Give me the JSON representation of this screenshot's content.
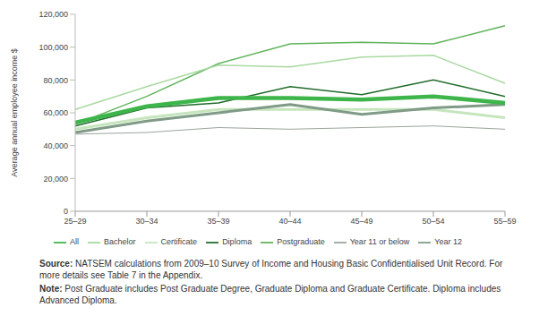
{
  "chart_data": {
    "type": "line",
    "y_label": "Average annual employee income $",
    "categories": [
      "25–29",
      "30–34",
      "35–39",
      "40–44",
      "45–49",
      "50–54",
      "55–59"
    ],
    "series": [
      {
        "name": "Postgraduate",
        "color": "#5fb35a",
        "values": [
          53000,
          70000,
          90000,
          102000,
          103000,
          102000,
          113000
        ]
      },
      {
        "name": "Bachelor",
        "color": "#a9d9a1",
        "values": [
          62000,
          76000,
          89000,
          88000,
          94000,
          95000,
          78000
        ]
      },
      {
        "name": "Diploma",
        "color": "#1f6b2b",
        "values": [
          52000,
          63000,
          66000,
          76000,
          71000,
          80000,
          70000
        ]
      },
      {
        "name": "Certificate",
        "color": "#c5e5bd",
        "values": [
          50000,
          57000,
          62000,
          62000,
          62000,
          62000,
          57000
        ]
      },
      {
        "name": "Year 12",
        "color": "#7f9a86",
        "values": [
          48000,
          55000,
          60000,
          65000,
          59000,
          63000,
          65000
        ]
      },
      {
        "name": "Year 11 or below",
        "color": "#9aa59c",
        "values": [
          47000,
          48000,
          51000,
          50000,
          51000,
          52000,
          50000
        ]
      },
      {
        "name": "All",
        "color": "#3db54a",
        "values": [
          54000,
          64000,
          69000,
          69000,
          68000,
          70000,
          66000
        ]
      }
    ],
    "ylim": [
      0,
      120000
    ],
    "yticks": [
      0,
      {
        "value": 20000,
        "label": "20,000"
      },
      {
        "value": 40000,
        "label": "40,000"
      },
      {
        "value": 60000,
        "label": "60,000"
      },
      {
        "value": 80000,
        "label": "80,000"
      },
      {
        "value": 100000,
        "label": "100,000"
      },
      {
        "value": 120000,
        "label": "120,000"
      }
    ],
    "grid": false,
    "legend": "bottom",
    "source": {
      "label": "Source:",
      "text": "NATSEM calculations from 2009–10 Survey of Income and Housing Basic Confidentialised Unit Record. For more details see Table 7 in the Appendix."
    },
    "note": {
      "label": "Note:",
      "text": "Post Graduate includes Post Graduate Degree, Graduate Diploma and Graduate Certificate. Diploma includes Advanced Diploma."
    }
  }
}
